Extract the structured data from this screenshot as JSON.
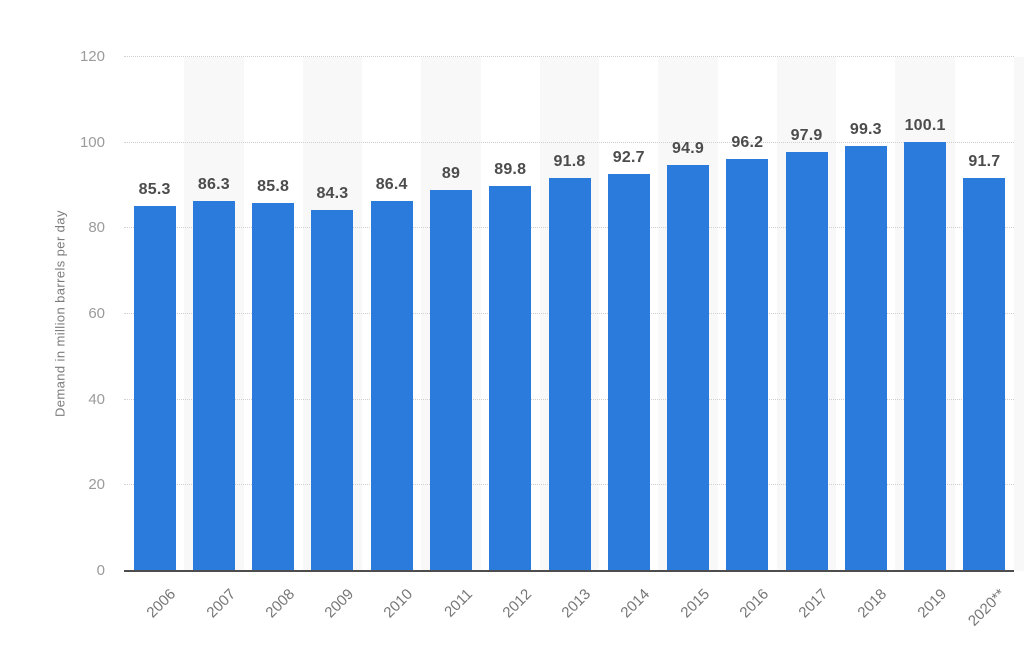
{
  "chart_data": {
    "type": "bar",
    "title": "",
    "categories": [
      "2006",
      "2007",
      "2008",
      "2009",
      "2010",
      "2011",
      "2012",
      "2013",
      "2014",
      "2015",
      "2016",
      "2017",
      "2018",
      "2019",
      "2020**"
    ],
    "values": [
      85.3,
      86.3,
      85.8,
      84.3,
      86.4,
      89,
      89.8,
      91.8,
      92.7,
      94.9,
      96.2,
      97.9,
      99.3,
      100.1,
      91.7
    ],
    "xlabel": "",
    "ylabel": "Demand in million barrels per day",
    "ylim": [
      0,
      120
    ],
    "yticks": [
      0,
      20,
      40,
      60,
      80,
      100,
      120
    ],
    "grid": "horizontal-dotted",
    "legend": "none",
    "band_pattern": "alternate-category-columns-shaded",
    "palette": {
      "bar": "#2b7bdd",
      "band": "#f8f8f9",
      "gridline": "#cfcfcf",
      "axis_line": "#4d4d4d",
      "value_label": "#4c4c4c",
      "y_tick_label": "#9b9b9b",
      "x_tick_label": "#767676",
      "y_axis_title": "#7c7c7c",
      "background": "#ffffff"
    }
  }
}
